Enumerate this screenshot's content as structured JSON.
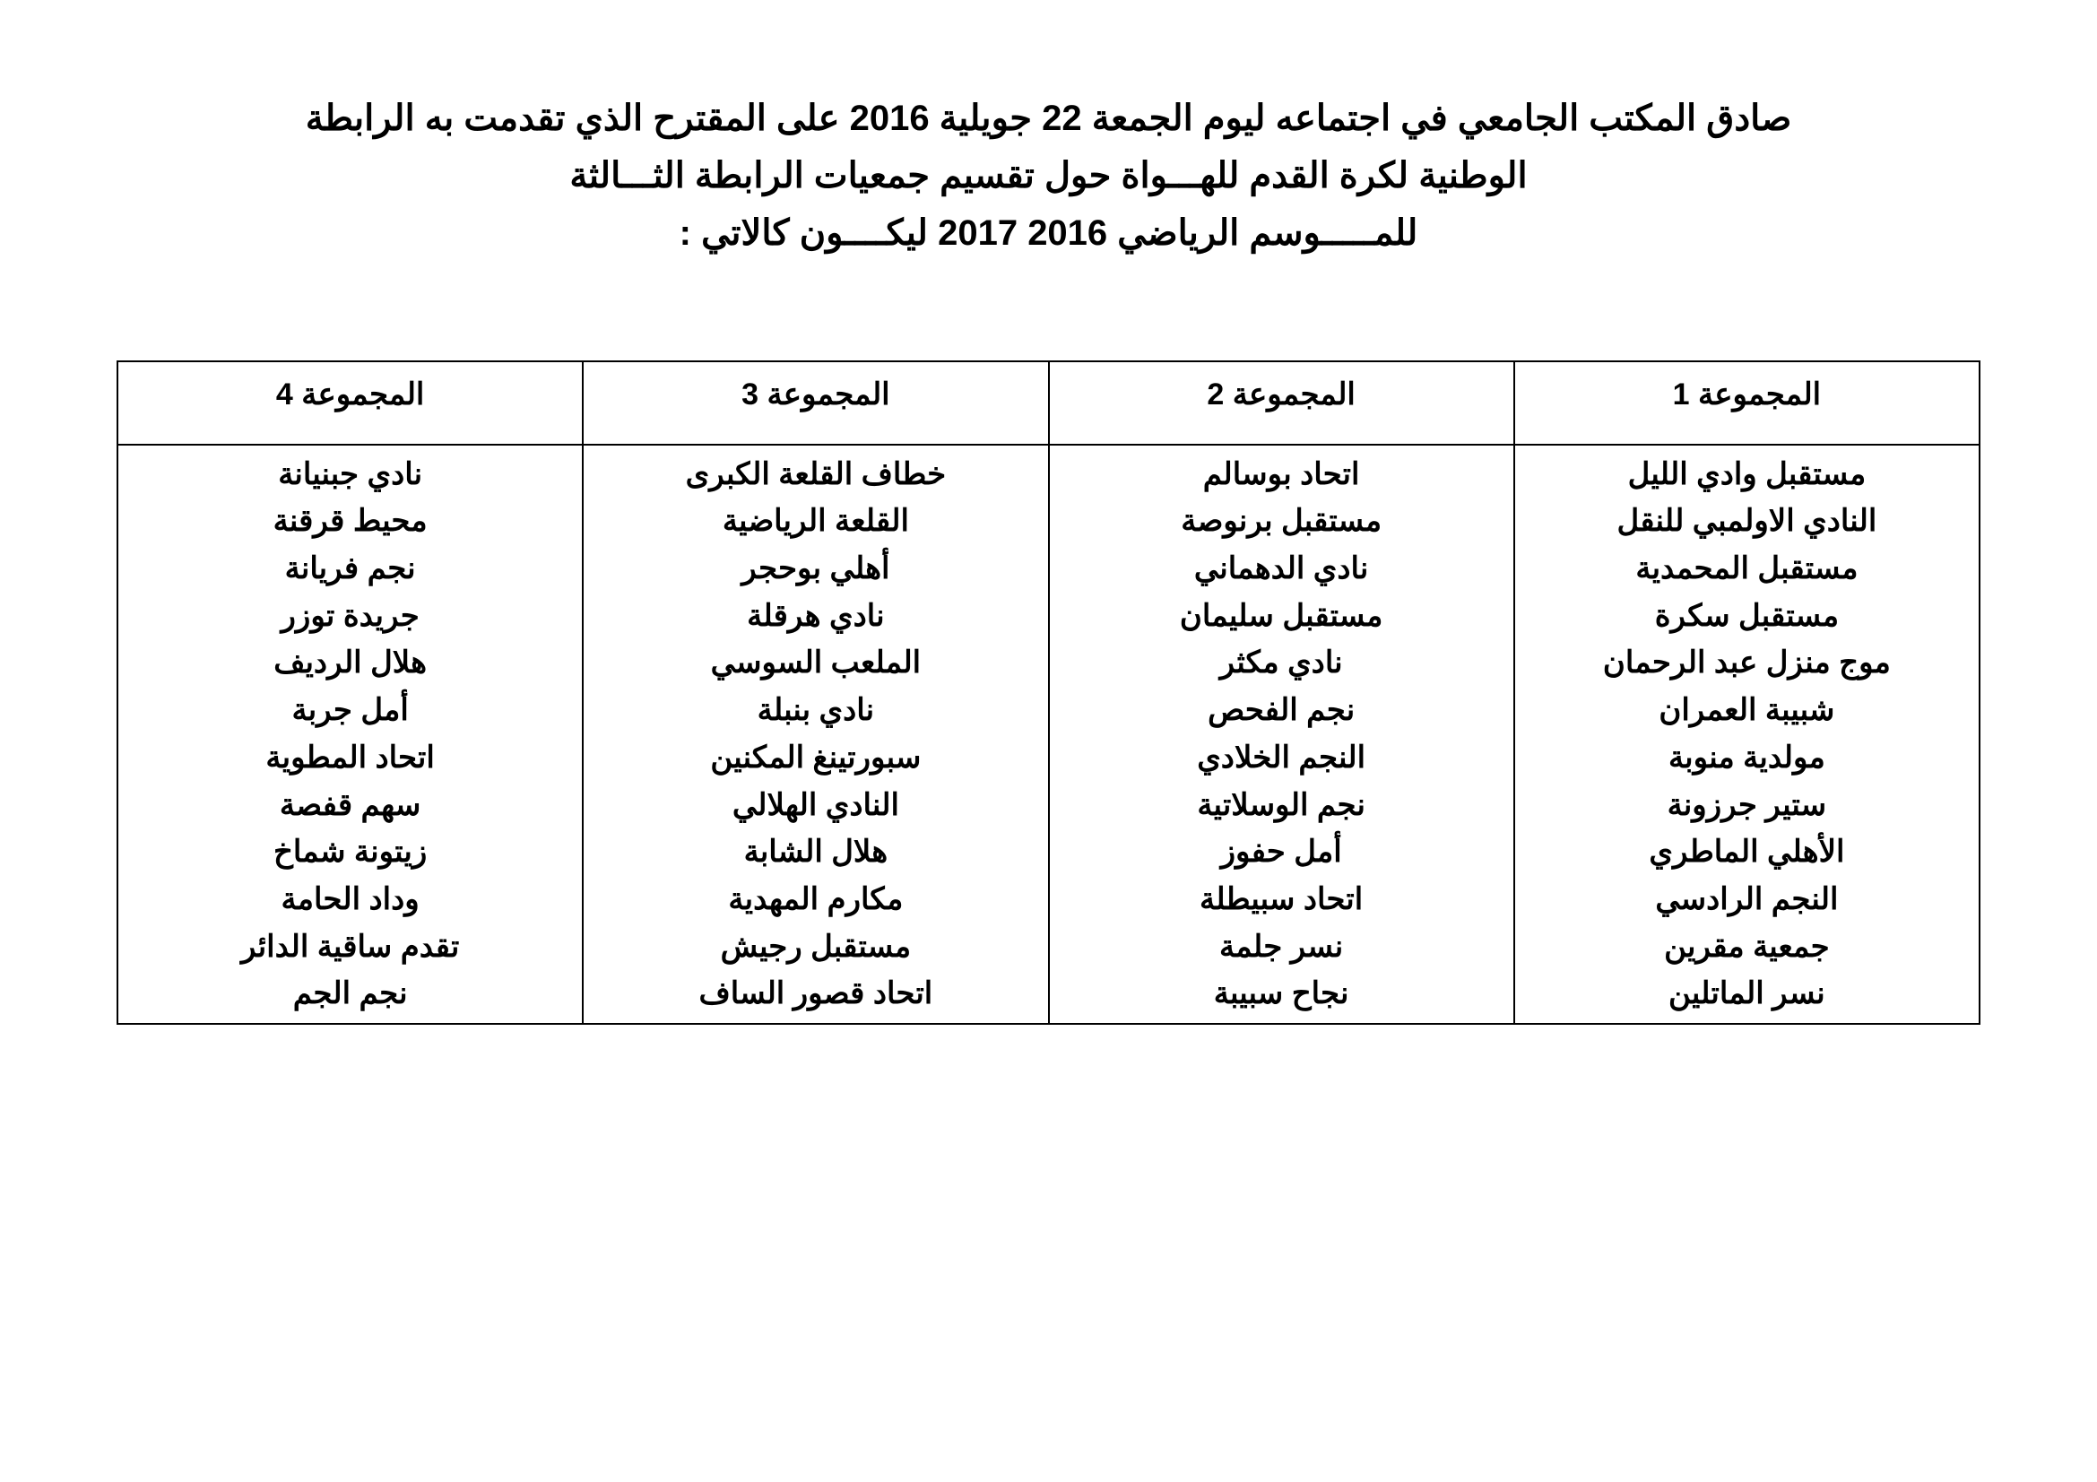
{
  "title": {
    "line1": "صادق المكتب الجامعي في اجتماعه ليوم الجمعة 22 جويلية 2016 على المقترح الذي تقدمت به الرابطة",
    "line2": "الوطنية لكرة القدم للهـــواة حول تقسيم جمعيات الرابطة الثـــالثة",
    "line3": "للمـــــوسم الرياضي 2016  2017 ليكــــون كالاتي :"
  },
  "table": {
    "columns": [
      "المجموعة 1",
      "المجموعة 2",
      "المجموعة 3",
      "المجموعة 4"
    ],
    "groups": {
      "g1": [
        "مستقبل وادي الليل",
        "النادي الاولمبي للنقل",
        "مستقبل المحمدية",
        "مستقبل سكرة",
        "موج منزل عبد الرحمان",
        "شبيبة العمران",
        "مولدية منوبة",
        "ستير جرزونة",
        "الأهلي الماطري",
        "النجم الرادسي",
        "جمعية مقرين",
        "نسر الماتلين"
      ],
      "g2": [
        "اتحاد بوسالم",
        "مستقبل برنوصة",
        "نادي الدهماني",
        "مستقبل سليمان",
        "نادي مكثر",
        "نجم الفحص",
        "النجم الخلادي",
        "نجم الوسلاتية",
        "أمل حفوز",
        "اتحاد سبيطلة",
        "نسر جلمة",
        "نجاح سبيبة"
      ],
      "g3": [
        "خطاف القلعة الكبرى",
        "القلعة الرياضية",
        "أهلي بوحجر",
        "نادي هرقلة",
        "الملعب السوسي",
        "نادي بنبلة",
        "سبورتينغ المكنين",
        "النادي الهلالي",
        "هلال الشابة",
        "مكارم المهدية",
        "مستقبل رجيش",
        "اتحاد قصور الساف"
      ],
      "g4": [
        "نادي جبنيانة",
        "محيط قرقنة",
        "نجم فريانة",
        "جريدة توزر",
        "هلال الرديف",
        "أمل جربة",
        "اتحاد المطوية",
        "سهم قفصة",
        "زيتونة شماخ",
        "وداد الحامة",
        "تقدم ساقية الدائر",
        "نجم الجم"
      ]
    }
  },
  "style": {
    "background_color": "#ffffff",
    "text_color": "#000000",
    "border_color": "#000000",
    "title_fontsize": 40,
    "cell_fontsize": 34,
    "font_weight": "bold"
  }
}
